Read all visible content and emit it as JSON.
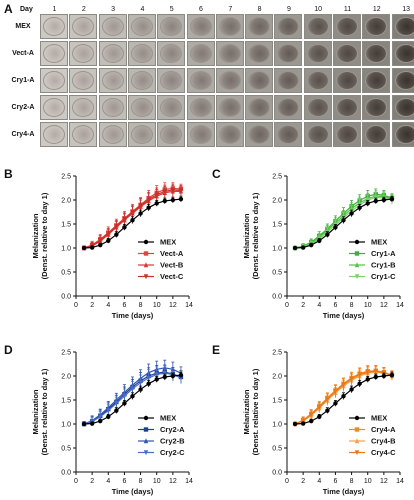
{
  "panel_a": {
    "label": "A",
    "day_title": "Day",
    "days": [
      "1",
      "2",
      "3",
      "4",
      "5",
      "6",
      "7",
      "8",
      "9",
      "10",
      "11",
      "12",
      "13"
    ],
    "rows": [
      "MEX",
      "Vect-A",
      "Cry1-A",
      "Cry2-A",
      "Cry4-A"
    ]
  },
  "chart_data": [
    {
      "panel": "B",
      "type": "line",
      "xlabel": "Time (days)",
      "ylabel_line1": "Melanization",
      "ylabel_line2": "(Denst. relative to day 1)",
      "xlim": [
        0,
        14
      ],
      "ylim": [
        0,
        2.5
      ],
      "xticks": [
        "0",
        "2",
        "4",
        "6",
        "8",
        "10",
        "12",
        "14"
      ],
      "yticks": [
        "0.0",
        "0.5",
        "1.0",
        "1.5",
        "2.0",
        "2.5"
      ],
      "x": [
        1,
        2,
        3,
        4,
        5,
        6,
        7,
        8,
        9,
        10,
        11,
        12,
        13
      ],
      "series": [
        {
          "name": "MEX",
          "color": "#000000",
          "marker": "circle",
          "values": [
            1.0,
            1.01,
            1.06,
            1.15,
            1.28,
            1.43,
            1.58,
            1.72,
            1.84,
            1.93,
            1.98,
            2.0,
            2.02
          ],
          "errors": [
            0.03,
            0.03,
            0.04,
            0.05,
            0.06,
            0.06,
            0.07,
            0.07,
            0.07,
            0.06,
            0.06,
            0.06,
            0.06
          ]
        },
        {
          "name": "Vect-A",
          "color": "#e2433d",
          "marker": "square",
          "values": [
            1.0,
            1.06,
            1.18,
            1.32,
            1.47,
            1.62,
            1.76,
            1.9,
            2.04,
            2.15,
            2.22,
            2.24,
            2.23
          ],
          "errors": [
            0.04,
            0.08,
            0.1,
            0.12,
            0.13,
            0.14,
            0.15,
            0.15,
            0.16,
            0.15,
            0.14,
            0.12,
            0.1
          ]
        },
        {
          "name": "Vect-B",
          "color": "#d63a34",
          "marker": "triangle",
          "values": [
            1.0,
            1.04,
            1.14,
            1.28,
            1.43,
            1.58,
            1.72,
            1.86,
            1.98,
            2.08,
            2.15,
            2.18,
            2.18
          ],
          "errors": [
            0.04,
            0.07,
            0.09,
            0.11,
            0.12,
            0.13,
            0.14,
            0.14,
            0.15,
            0.14,
            0.13,
            0.12,
            0.1
          ]
        },
        {
          "name": "Vect-C",
          "color": "#c8302a",
          "marker": "triangle-down",
          "values": [
            1.0,
            1.05,
            1.16,
            1.3,
            1.45,
            1.6,
            1.74,
            1.88,
            2.01,
            2.11,
            2.18,
            2.21,
            2.2
          ],
          "errors": [
            0.04,
            0.07,
            0.1,
            0.11,
            0.12,
            0.13,
            0.14,
            0.15,
            0.15,
            0.14,
            0.13,
            0.12,
            0.1
          ]
        }
      ]
    },
    {
      "panel": "C",
      "type": "line",
      "xlabel": "Time (days)",
      "ylabel_line1": "Melanization",
      "ylabel_line2": "(Denst. relative to day 1)",
      "xlim": [
        0,
        14
      ],
      "ylim": [
        0,
        2.5
      ],
      "xticks": [
        "0",
        "2",
        "4",
        "6",
        "8",
        "10",
        "12",
        "14"
      ],
      "yticks": [
        "0.0",
        "0.5",
        "1.0",
        "1.5",
        "2.0",
        "2.5"
      ],
      "x": [
        1,
        2,
        3,
        4,
        5,
        6,
        7,
        8,
        9,
        10,
        11,
        12,
        13
      ],
      "series": [
        {
          "name": "MEX",
          "color": "#000000",
          "marker": "circle",
          "values": [
            1.0,
            1.01,
            1.06,
            1.15,
            1.28,
            1.43,
            1.58,
            1.72,
            1.84,
            1.93,
            1.98,
            2.0,
            2.02
          ],
          "errors": [
            0.03,
            0.03,
            0.04,
            0.05,
            0.06,
            0.06,
            0.07,
            0.07,
            0.07,
            0.06,
            0.06,
            0.06,
            0.06
          ]
        },
        {
          "name": "Cry1-A",
          "color": "#3fae3a",
          "marker": "square",
          "values": [
            1.0,
            1.04,
            1.12,
            1.25,
            1.4,
            1.56,
            1.72,
            1.87,
            1.99,
            2.08,
            2.12,
            2.1,
            2.04
          ],
          "errors": [
            0.03,
            0.05,
            0.07,
            0.09,
            0.1,
            0.11,
            0.12,
            0.12,
            0.12,
            0.12,
            0.11,
            0.1,
            0.09
          ]
        },
        {
          "name": "Cry1-B",
          "color": "#53c24a",
          "marker": "triangle",
          "values": [
            1.0,
            1.03,
            1.1,
            1.22,
            1.37,
            1.52,
            1.67,
            1.82,
            1.94,
            2.03,
            2.08,
            2.07,
            2.02
          ],
          "errors": [
            0.03,
            0.05,
            0.07,
            0.08,
            0.1,
            0.11,
            0.11,
            0.12,
            0.12,
            0.11,
            0.11,
            0.1,
            0.09
          ]
        },
        {
          "name": "Cry1-C",
          "color": "#7ad36f",
          "marker": "triangle-down",
          "values": [
            1.0,
            1.02,
            1.08,
            1.19,
            1.33,
            1.48,
            1.63,
            1.77,
            1.9,
            2.0,
            2.05,
            2.05,
            2.0
          ],
          "errors": [
            0.03,
            0.05,
            0.06,
            0.08,
            0.09,
            0.1,
            0.11,
            0.11,
            0.12,
            0.11,
            0.1,
            0.1,
            0.09
          ]
        }
      ]
    },
    {
      "panel": "D",
      "type": "line",
      "xlabel": "Time (days)",
      "ylabel_line1": "Melanization",
      "ylabel_line2": "(Denst. relative to day 1)",
      "xlim": [
        0,
        14
      ],
      "ylim": [
        0,
        2.5
      ],
      "xticks": [
        "0",
        "2",
        "4",
        "6",
        "8",
        "10",
        "12",
        "14"
      ],
      "yticks": [
        "0.0",
        "0.5",
        "1.0",
        "1.5",
        "2.0",
        "2.5"
      ],
      "x": [
        1,
        2,
        3,
        4,
        5,
        6,
        7,
        8,
        9,
        10,
        11,
        12,
        13
      ],
      "series": [
        {
          "name": "MEX",
          "color": "#000000",
          "marker": "circle",
          "values": [
            1.0,
            1.01,
            1.06,
            1.15,
            1.28,
            1.43,
            1.58,
            1.72,
            1.84,
            1.93,
            1.98,
            2.0,
            2.02
          ],
          "errors": [
            0.03,
            0.03,
            0.04,
            0.05,
            0.06,
            0.06,
            0.07,
            0.07,
            0.07,
            0.06,
            0.06,
            0.06,
            0.06
          ]
        },
        {
          "name": "Cry2-A",
          "color": "#1f3f8f",
          "marker": "square",
          "values": [
            1.0,
            1.06,
            1.17,
            1.31,
            1.46,
            1.62,
            1.77,
            1.9,
            2.0,
            2.06,
            2.08,
            2.04,
            1.98
          ],
          "errors": [
            0.05,
            0.1,
            0.12,
            0.13,
            0.14,
            0.15,
            0.16,
            0.17,
            0.17,
            0.16,
            0.15,
            0.14,
            0.13
          ]
        },
        {
          "name": "Cry2-B",
          "color": "#2f55b0",
          "marker": "triangle",
          "values": [
            1.0,
            1.07,
            1.19,
            1.34,
            1.5,
            1.66,
            1.81,
            1.95,
            2.07,
            2.14,
            2.17,
            2.14,
            2.06
          ],
          "errors": [
            0.05,
            0.1,
            0.12,
            0.13,
            0.14,
            0.16,
            0.17,
            0.18,
            0.18,
            0.17,
            0.16,
            0.15,
            0.13
          ]
        },
        {
          "name": "Cry2-C",
          "color": "#4a6ec8",
          "marker": "triangle-down",
          "values": [
            1.0,
            1.05,
            1.15,
            1.28,
            1.43,
            1.58,
            1.73,
            1.86,
            1.96,
            2.03,
            2.06,
            2.03,
            1.96
          ],
          "errors": [
            0.05,
            0.09,
            0.11,
            0.12,
            0.13,
            0.15,
            0.16,
            0.16,
            0.17,
            0.16,
            0.15,
            0.14,
            0.12
          ]
        }
      ]
    },
    {
      "panel": "E",
      "type": "line",
      "xlabel": "Time (days)",
      "ylabel_line1": "Melanization",
      "ylabel_line2": "(Denst. relative to day 1)",
      "xlim": [
        0,
        14
      ],
      "ylim": [
        0,
        2.5
      ],
      "xticks": [
        "0",
        "2",
        "4",
        "6",
        "8",
        "10",
        "12",
        "14"
      ],
      "yticks": [
        "0.0",
        "0.5",
        "1.0",
        "1.5",
        "2.0",
        "2.5"
      ],
      "x": [
        1,
        2,
        3,
        4,
        5,
        6,
        7,
        8,
        9,
        10,
        11,
        12,
        13
      ],
      "series": [
        {
          "name": "MEX",
          "color": "#000000",
          "marker": "circle",
          "values": [
            1.0,
            1.01,
            1.06,
            1.15,
            1.28,
            1.43,
            1.58,
            1.72,
            1.84,
            1.93,
            1.98,
            2.0,
            2.02
          ],
          "errors": [
            0.03,
            0.03,
            0.04,
            0.05,
            0.06,
            0.06,
            0.07,
            0.07,
            0.07,
            0.06,
            0.06,
            0.06,
            0.06
          ]
        },
        {
          "name": "Cry4-A",
          "color": "#f08a24",
          "marker": "square",
          "values": [
            1.0,
            1.08,
            1.21,
            1.37,
            1.54,
            1.7,
            1.84,
            1.96,
            2.05,
            2.1,
            2.11,
            2.08,
            2.02
          ],
          "errors": [
            0.04,
            0.07,
            0.09,
            0.1,
            0.11,
            0.12,
            0.12,
            0.12,
            0.12,
            0.12,
            0.11,
            0.1,
            0.09
          ]
        },
        {
          "name": "Cry4-B",
          "color": "#f5a04a",
          "marker": "triangle",
          "values": [
            1.0,
            1.06,
            1.18,
            1.33,
            1.49,
            1.65,
            1.79,
            1.91,
            2.0,
            2.06,
            2.08,
            2.06,
            2.0
          ],
          "errors": [
            0.04,
            0.07,
            0.09,
            0.1,
            0.11,
            0.11,
            0.12,
            0.12,
            0.12,
            0.11,
            0.11,
            0.1,
            0.09
          ]
        },
        {
          "name": "Cry4-C",
          "color": "#e9781a",
          "marker": "triangle-down",
          "values": [
            1.0,
            1.07,
            1.2,
            1.35,
            1.52,
            1.68,
            1.82,
            1.94,
            2.03,
            2.08,
            2.1,
            2.07,
            2.01
          ],
          "errors": [
            0.04,
            0.07,
            0.09,
            0.1,
            0.11,
            0.12,
            0.12,
            0.12,
            0.12,
            0.12,
            0.11,
            0.1,
            0.09
          ]
        }
      ]
    }
  ]
}
